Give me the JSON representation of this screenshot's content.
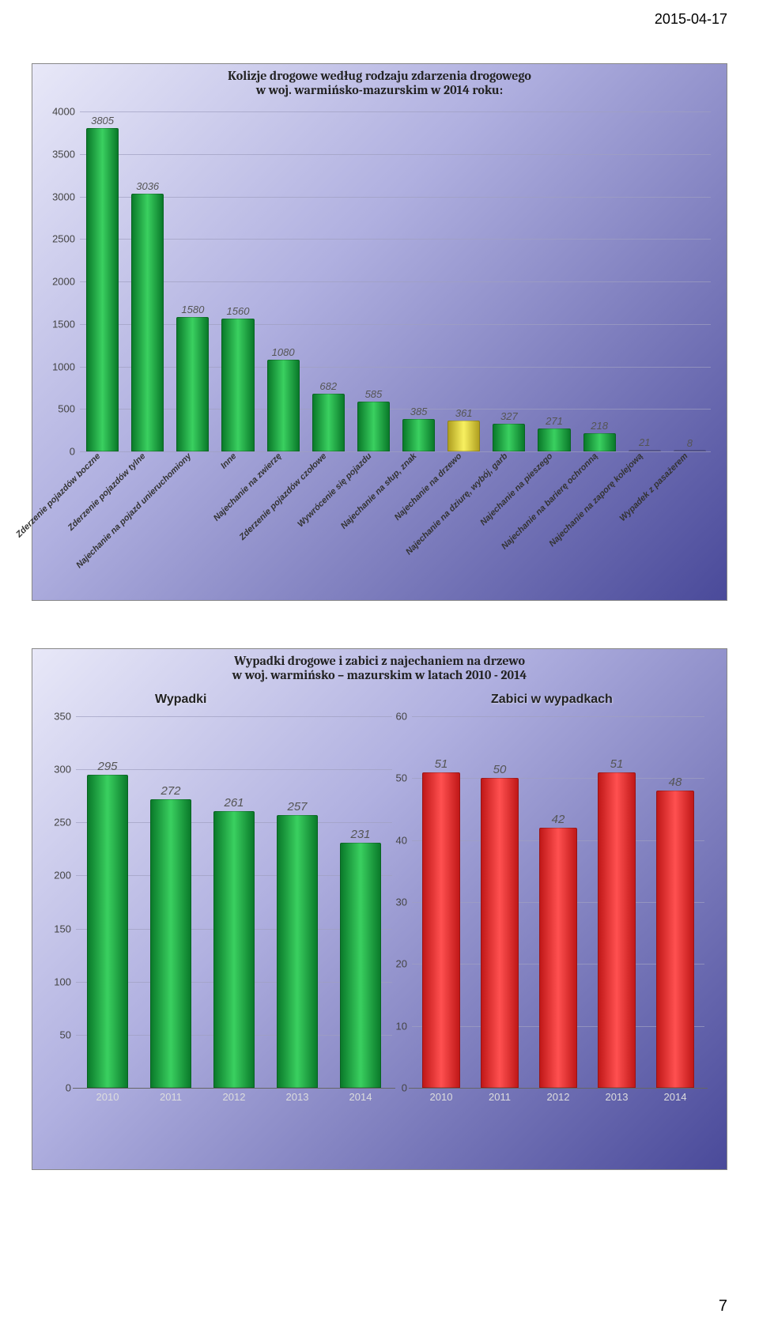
{
  "page": {
    "date": "2015-04-17",
    "number": "7",
    "bg": "#ffffff"
  },
  "chart1": {
    "title": "Kolizje drogowe według rodzaju zdarzenia drogowego\nw woj. warmińsko-mazurskim w 2014 roku:",
    "ylim": [
      0,
      4000
    ],
    "ytick_step": 500,
    "categories": [
      "Zderzenie pojazdów boczne",
      "Zderzenie pojazdów tylne",
      "Najechanie na pojazd unieruchomiony",
      "Inne",
      "Najechanie na zwierzę",
      "Zderzenie pojazdów czołowe",
      "Wywrócenie się pojazdu",
      "Najechanie na słup, znak",
      "Najechanie na drzewo",
      "Najechanie na dziurę, wybój, garb",
      "Najechanie na pieszego",
      "Najechanie na barierę ochronną",
      "Najechanie na zaporę kolejową",
      "Wypadek z pasażerem"
    ],
    "values": [
      3805,
      3036,
      1580,
      1560,
      1080,
      682,
      585,
      385,
      361,
      327,
      271,
      218,
      21,
      8
    ],
    "highlight_index": 8,
    "bar_color": "#1ea040",
    "highlight_color": "#e8e040",
    "value_font_size": 13,
    "label_font_size": 11
  },
  "chart2": {
    "title": "Wypadki drogowe i zabici z najechaniem na drzewo\nw woj. warmińsko – mazurskim w latach 2010 - 2014",
    "years": [
      "2010",
      "2011",
      "2012",
      "2013",
      "2014"
    ],
    "left": {
      "subtitle": "Wypadki",
      "ylim": [
        0,
        350
      ],
      "ytick_step": 50,
      "values": [
        295,
        272,
        261,
        257,
        231
      ],
      "bar_color": "#1ea040"
    },
    "right": {
      "subtitle": "Zabici w wypadkach",
      "ylim": [
        0,
        60
      ],
      "ytick_step": 10,
      "values": [
        51,
        50,
        42,
        51,
        48
      ],
      "bar_color": "#e02020"
    },
    "value_font_size": 15
  }
}
